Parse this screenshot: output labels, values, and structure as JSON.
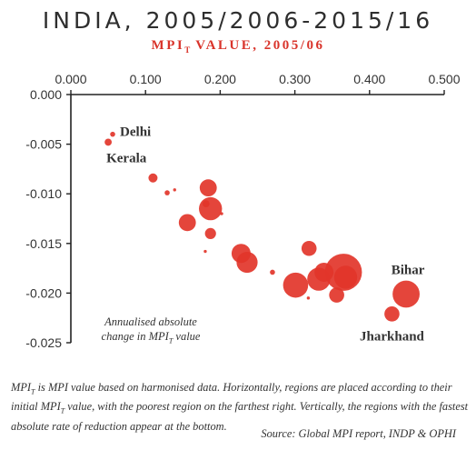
{
  "header": {
    "title": "INDIA, 2005/2006-2015/16",
    "subtitle_main": "MPI",
    "subtitle_sub": "T",
    "subtitle_rest": " VALUE, 2005/06"
  },
  "colors": {
    "bubble": "#e2352a",
    "axis": "#222222",
    "title": "#2e2e2e",
    "subtitle": "#d9342b"
  },
  "chart_data": {
    "type": "scatter",
    "x_axis_position": "top",
    "xlim": [
      0.0,
      0.5
    ],
    "ylim": [
      -0.025,
      0.0
    ],
    "x_ticks": [
      "0.000",
      "0.100",
      "0.200",
      "0.300",
      "0.400",
      "0.500"
    ],
    "x_tick_values": [
      0.0,
      0.1,
      0.2,
      0.3,
      0.4,
      0.5
    ],
    "y_ticks": [
      "0.000",
      "-0.005",
      "-0.010",
      "-0.015",
      "-0.020",
      "-0.025"
    ],
    "y_tick_values": [
      0.0,
      -0.005,
      -0.01,
      -0.015,
      -0.02,
      -0.025
    ],
    "grid": false,
    "ylabel_parts": [
      "Annualised absolute",
      "change in MPI",
      "T",
      " value"
    ],
    "points": [
      {
        "x": 0.056,
        "y": -0.004,
        "size": 2,
        "label": "Delhi"
      },
      {
        "x": 0.05,
        "y": -0.0048,
        "size": 3,
        "label": "Kerala"
      },
      {
        "x": 0.11,
        "y": -0.0084,
        "size": 4
      },
      {
        "x": 0.129,
        "y": -0.0099,
        "size": 2
      },
      {
        "x": 0.139,
        "y": -0.0096,
        "size": 1
      },
      {
        "x": 0.156,
        "y": -0.0129,
        "size": 8
      },
      {
        "x": 0.184,
        "y": -0.0094,
        "size": 8
      },
      {
        "x": 0.181,
        "y": -0.011,
        "size": 3
      },
      {
        "x": 0.187,
        "y": -0.0115,
        "size": 11
      },
      {
        "x": 0.187,
        "y": -0.014,
        "size": 5
      },
      {
        "x": 0.202,
        "y": -0.012,
        "size": 1
      },
      {
        "x": 0.18,
        "y": -0.0158,
        "size": 1
      },
      {
        "x": 0.228,
        "y": -0.016,
        "size": 9
      },
      {
        "x": 0.236,
        "y": -0.0169,
        "size": 10
      },
      {
        "x": 0.27,
        "y": -0.0179,
        "size": 2
      },
      {
        "x": 0.319,
        "y": -0.0155,
        "size": 7
      },
      {
        "x": 0.301,
        "y": -0.0192,
        "size": 12
      },
      {
        "x": 0.318,
        "y": -0.0205,
        "size": 1
      },
      {
        "x": 0.332,
        "y": -0.0186,
        "size": 11
      },
      {
        "x": 0.339,
        "y": -0.0179,
        "size": 9
      },
      {
        "x": 0.356,
        "y": -0.0202,
        "size": 7
      },
      {
        "x": 0.365,
        "y": -0.0179,
        "size": 18
      },
      {
        "x": 0.368,
        "y": -0.0184,
        "size": 11
      },
      {
        "x": 0.449,
        "y": -0.0201,
        "size": 13,
        "label": "Bihar"
      },
      {
        "x": 0.43,
        "y": -0.0221,
        "size": 7,
        "label": "Jharkhand"
      }
    ]
  },
  "footnote": {
    "p1": "MPI",
    "p1_sub": "T",
    "p2": " is MPI value based on harmonised data. Horizontally, regions are placed according to their initial MPI",
    "p2_sub": "T",
    "p3": " value, with the poorest region on the farthest right. Vertically, the regions with the fastest absolute rate of reduction appear at the bottom."
  },
  "source": "Source: Global MPI report, INDP & OPHI"
}
